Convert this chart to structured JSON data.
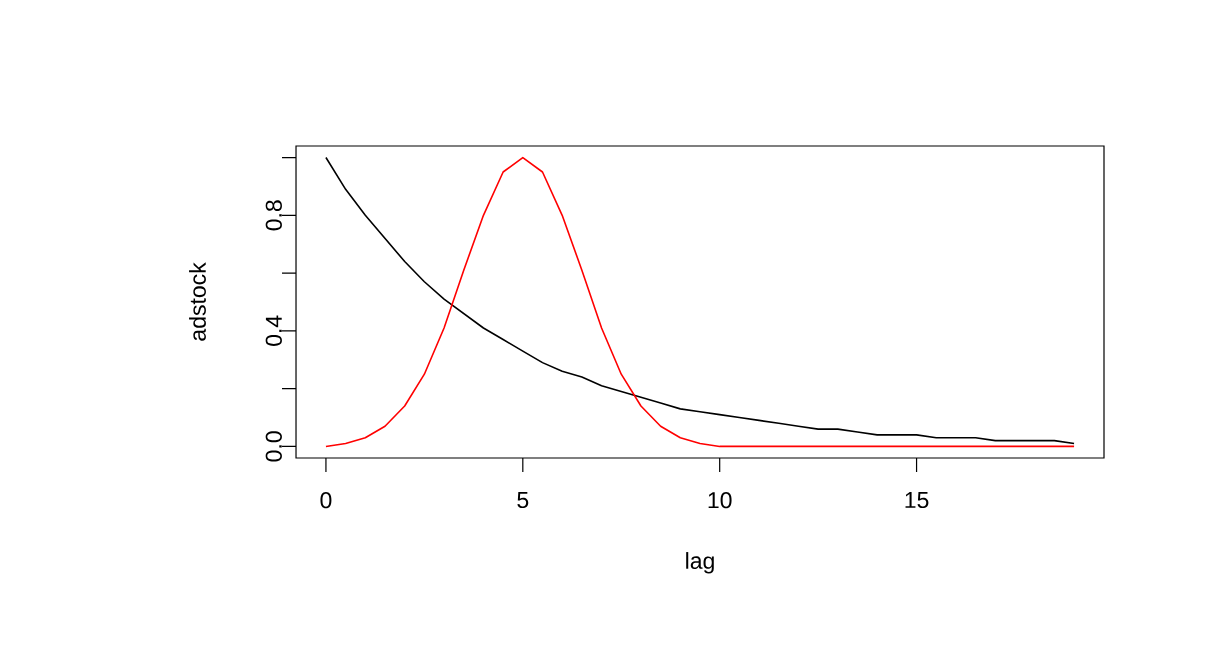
{
  "chart_data": {
    "type": "line",
    "xlabel": "lag",
    "ylabel": "adstock",
    "x": [
      0,
      0.5,
      1,
      1.5,
      2,
      2.5,
      3,
      3.5,
      4,
      4.5,
      5,
      5.5,
      6,
      6.5,
      7,
      7.5,
      8,
      8.5,
      9,
      9.5,
      10,
      10.5,
      11,
      11.5,
      12,
      12.5,
      13,
      13.5,
      14,
      14.5,
      15,
      15.5,
      16,
      16.5,
      17,
      17.5,
      18,
      18.5,
      19
    ],
    "series": [
      {
        "color": "#000000",
        "values": [
          1,
          0.89,
          0.8,
          0.72,
          0.64,
          0.57,
          0.51,
          0.46,
          0.41,
          0.37,
          0.33,
          0.29,
          0.26,
          0.24,
          0.21,
          0.19,
          0.17,
          0.15,
          0.13,
          0.12,
          0.11,
          0.1,
          0.09,
          0.08,
          0.07,
          0.06,
          0.06,
          0.05,
          0.04,
          0.04,
          0.04,
          0.03,
          0.03,
          0.03,
          0.02,
          0.02,
          0.02,
          0.02,
          0.01
        ]
      },
      {
        "color": "#ff0000",
        "values": [
          0,
          0.01,
          0.03,
          0.07,
          0.14,
          0.25,
          0.41,
          0.61,
          0.8,
          0.95,
          1,
          0.95,
          0.8,
          0.61,
          0.41,
          0.25,
          0.14,
          0.07,
          0.03,
          0.01,
          0,
          0,
          0,
          0,
          0,
          0,
          0,
          0,
          0,
          0,
          0,
          0,
          0,
          0,
          0,
          0,
          0,
          0,
          0
        ]
      }
    ],
    "xlim": [
      -0.76,
      19.76
    ],
    "ylim": [
      -0.04,
      1.04
    ],
    "xticks": [
      0,
      5,
      10,
      15
    ],
    "yticks": [
      {
        "value": 0,
        "label": "0.0"
      },
      {
        "value": 0.2,
        "label": null
      },
      {
        "value": 0.4,
        "label": "0.4"
      },
      {
        "value": 0.6,
        "label": null
      },
      {
        "value": 0.8,
        "label": "0.8"
      },
      {
        "value": 1,
        "label": null
      }
    ],
    "grid": false,
    "marker": "none",
    "line_style": "solid"
  }
}
